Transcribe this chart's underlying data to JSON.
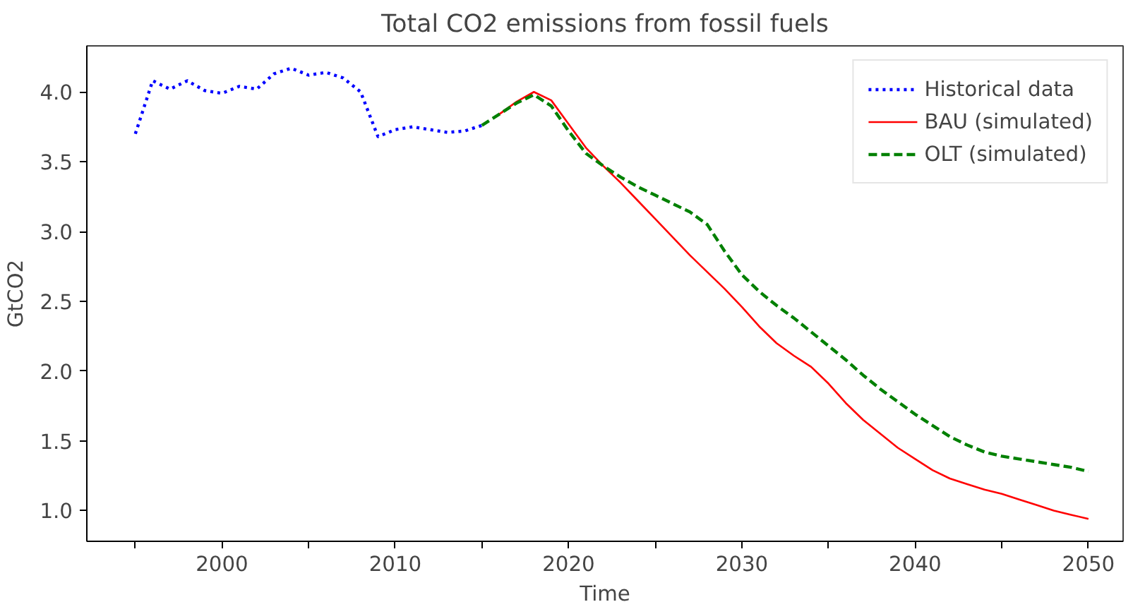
{
  "chart_data": {
    "type": "line",
    "title": "Total CO2 emissions from fossil fuels",
    "xlabel": "Time",
    "ylabel": "GtCO2",
    "xlim": [
      1992.2,
      2052.0
    ],
    "ylim": [
      0.78,
      4.33
    ],
    "xticks": [
      {
        "value": 1995,
        "label": null
      },
      2000,
      {
        "value": 2005,
        "label": null
      },
      2010,
      {
        "value": 2015,
        "label": null
      },
      2020,
      {
        "value": 2025,
        "label": null
      },
      2030,
      {
        "value": 2035,
        "label": null
      },
      2040,
      {
        "value": 2045,
        "label": null
      },
      2050
    ],
    "yticks": [
      {
        "value": 1.0,
        "label": "1.0"
      },
      1.5,
      {
        "value": 2.0,
        "label": "2.0"
      },
      2.5,
      {
        "value": 3.0,
        "label": "3.0"
      },
      3.5,
      {
        "value": 4.0,
        "label": "4.0"
      }
    ],
    "grid": false,
    "legend": "top right",
    "series": [
      {
        "name": "Historical data",
        "color": "#0000ff",
        "line_style": "dotted",
        "x": [
          1995,
          1996,
          1997,
          1998,
          1999,
          2000,
          2001,
          2002,
          2003,
          2004,
          2005,
          2006,
          2007,
          2008,
          2009,
          2010,
          2011,
          2012,
          2013,
          2014,
          2015
        ],
        "values": [
          3.7,
          4.08,
          4.02,
          4.08,
          4.01,
          3.99,
          4.04,
          4.02,
          4.13,
          4.17,
          4.12,
          4.14,
          4.1,
          4.0,
          3.68,
          3.73,
          3.75,
          3.73,
          3.71,
          3.72,
          3.76
        ]
      },
      {
        "name": "BAU (simulated)",
        "color": "#ff0000",
        "line_style": "solid",
        "x": [
          2016,
          2017,
          2018,
          2019,
          2020,
          2021,
          2022,
          2023,
          2024,
          2025,
          2026,
          2027,
          2028,
          2029,
          2030,
          2031,
          2032,
          2033,
          2034,
          2035,
          2036,
          2037,
          2038,
          2039,
          2040,
          2041,
          2042,
          2043,
          2044,
          2045,
          2046,
          2047,
          2048,
          2049,
          2050
        ],
        "values": [
          3.84,
          3.93,
          4.0,
          3.94,
          3.77,
          3.6,
          3.47,
          3.35,
          3.22,
          3.09,
          2.96,
          2.83,
          2.71,
          2.59,
          2.46,
          2.32,
          2.2,
          2.11,
          2.03,
          1.91,
          1.77,
          1.65,
          1.55,
          1.45,
          1.37,
          1.29,
          1.23,
          1.19,
          1.15,
          1.12,
          1.08,
          1.04,
          1.0,
          0.97,
          0.94
        ]
      },
      {
        "name": "OLT (simulated)",
        "color": "#008000",
        "line_style": "dashed",
        "x": [
          2015,
          2016,
          2017,
          2018,
          2019,
          2020,
          2021,
          2022,
          2023,
          2024,
          2025,
          2026,
          2027,
          2028,
          2029,
          2030,
          2031,
          2032,
          2033,
          2034,
          2035,
          2036,
          2037,
          2038,
          2039,
          2040,
          2041,
          2042,
          2043,
          2044,
          2045,
          2046,
          2047,
          2048,
          2049,
          2050
        ],
        "values": [
          3.76,
          3.84,
          3.92,
          3.98,
          3.9,
          3.72,
          3.56,
          3.47,
          3.39,
          3.32,
          3.26,
          3.2,
          3.14,
          3.05,
          2.86,
          2.69,
          2.57,
          2.47,
          2.38,
          2.28,
          2.18,
          2.08,
          1.97,
          1.87,
          1.78,
          1.69,
          1.61,
          1.53,
          1.47,
          1.42,
          1.39,
          1.37,
          1.35,
          1.33,
          1.31,
          1.28
        ]
      }
    ]
  }
}
